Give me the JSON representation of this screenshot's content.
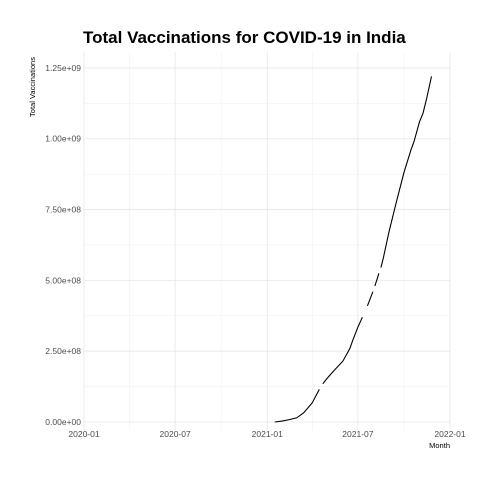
{
  "chart_data": {
    "type": "line",
    "title": "Total Vaccinations for COVID-19 in India",
    "xlabel": "Month",
    "ylabel": "Total Vaccinations",
    "x_type": "date",
    "xlim": [
      "2020-01-01",
      "2022-01-01"
    ],
    "ylim": [
      0,
      1250000000
    ],
    "x_ticks": [
      {
        "value": "2020-01-01",
        "label": "2020-01"
      },
      {
        "value": "2020-07-01",
        "label": "2020-07"
      },
      {
        "value": "2021-01-01",
        "label": "2021-01"
      },
      {
        "value": "2021-07-01",
        "label": "2021-07"
      },
      {
        "value": "2022-01-01",
        "label": "2022-01"
      }
    ],
    "y_ticks": [
      {
        "value": 0,
        "label": "0.00e+00"
      },
      {
        "value": 250000000,
        "label": "2.50e+08"
      },
      {
        "value": 500000000,
        "label": "5.00e+08"
      },
      {
        "value": 750000000,
        "label": "7.50e+08"
      },
      {
        "value": 1000000000,
        "label": "1.00e+09"
      },
      {
        "value": 1250000000,
        "label": "1.25e+09"
      }
    ],
    "grid": true,
    "legend": "none",
    "series": [
      {
        "segments": [
          [
            {
              "x": "2021-01-16",
              "y": 0
            },
            {
              "x": "2021-02-01",
              "y": 4000000
            },
            {
              "x": "2021-02-15",
              "y": 9000000
            },
            {
              "x": "2021-03-01",
              "y": 15000000
            },
            {
              "x": "2021-03-15",
              "y": 33000000
            },
            {
              "x": "2021-04-01",
              "y": 68000000
            },
            {
              "x": "2021-04-15",
              "y": 115000000
            }
          ],
          [
            {
              "x": "2021-04-22",
              "y": 135000000
            },
            {
              "x": "2021-05-01",
              "y": 155000000
            },
            {
              "x": "2021-05-15",
              "y": 183000000
            },
            {
              "x": "2021-06-01",
              "y": 215000000
            },
            {
              "x": "2021-06-15",
              "y": 260000000
            },
            {
              "x": "2021-06-21",
              "y": 290000000
            },
            {
              "x": "2021-07-01",
              "y": 335000000
            },
            {
              "x": "2021-07-10",
              "y": 370000000
            }
          ],
          [
            {
              "x": "2021-07-20",
              "y": 410000000
            },
            {
              "x": "2021-07-31",
              "y": 460000000
            }
          ],
          [
            {
              "x": "2021-08-04",
              "y": 480000000
            },
            {
              "x": "2021-08-12",
              "y": 525000000
            }
          ],
          [
            {
              "x": "2021-08-16",
              "y": 545000000
            },
            {
              "x": "2021-08-21",
              "y": 580000000
            },
            {
              "x": "2021-09-01",
              "y": 670000000
            },
            {
              "x": "2021-09-15",
              "y": 770000000
            },
            {
              "x": "2021-10-01",
              "y": 880000000
            },
            {
              "x": "2021-10-15",
              "y": 960000000
            },
            {
              "x": "2021-10-21",
              "y": 990000000
            },
            {
              "x": "2021-11-01",
              "y": 1060000000
            },
            {
              "x": "2021-11-08",
              "y": 1090000000
            },
            {
              "x": "2021-11-15",
              "y": 1140000000
            },
            {
              "x": "2021-11-25",
              "y": 1220000000
            }
          ]
        ]
      }
    ]
  }
}
